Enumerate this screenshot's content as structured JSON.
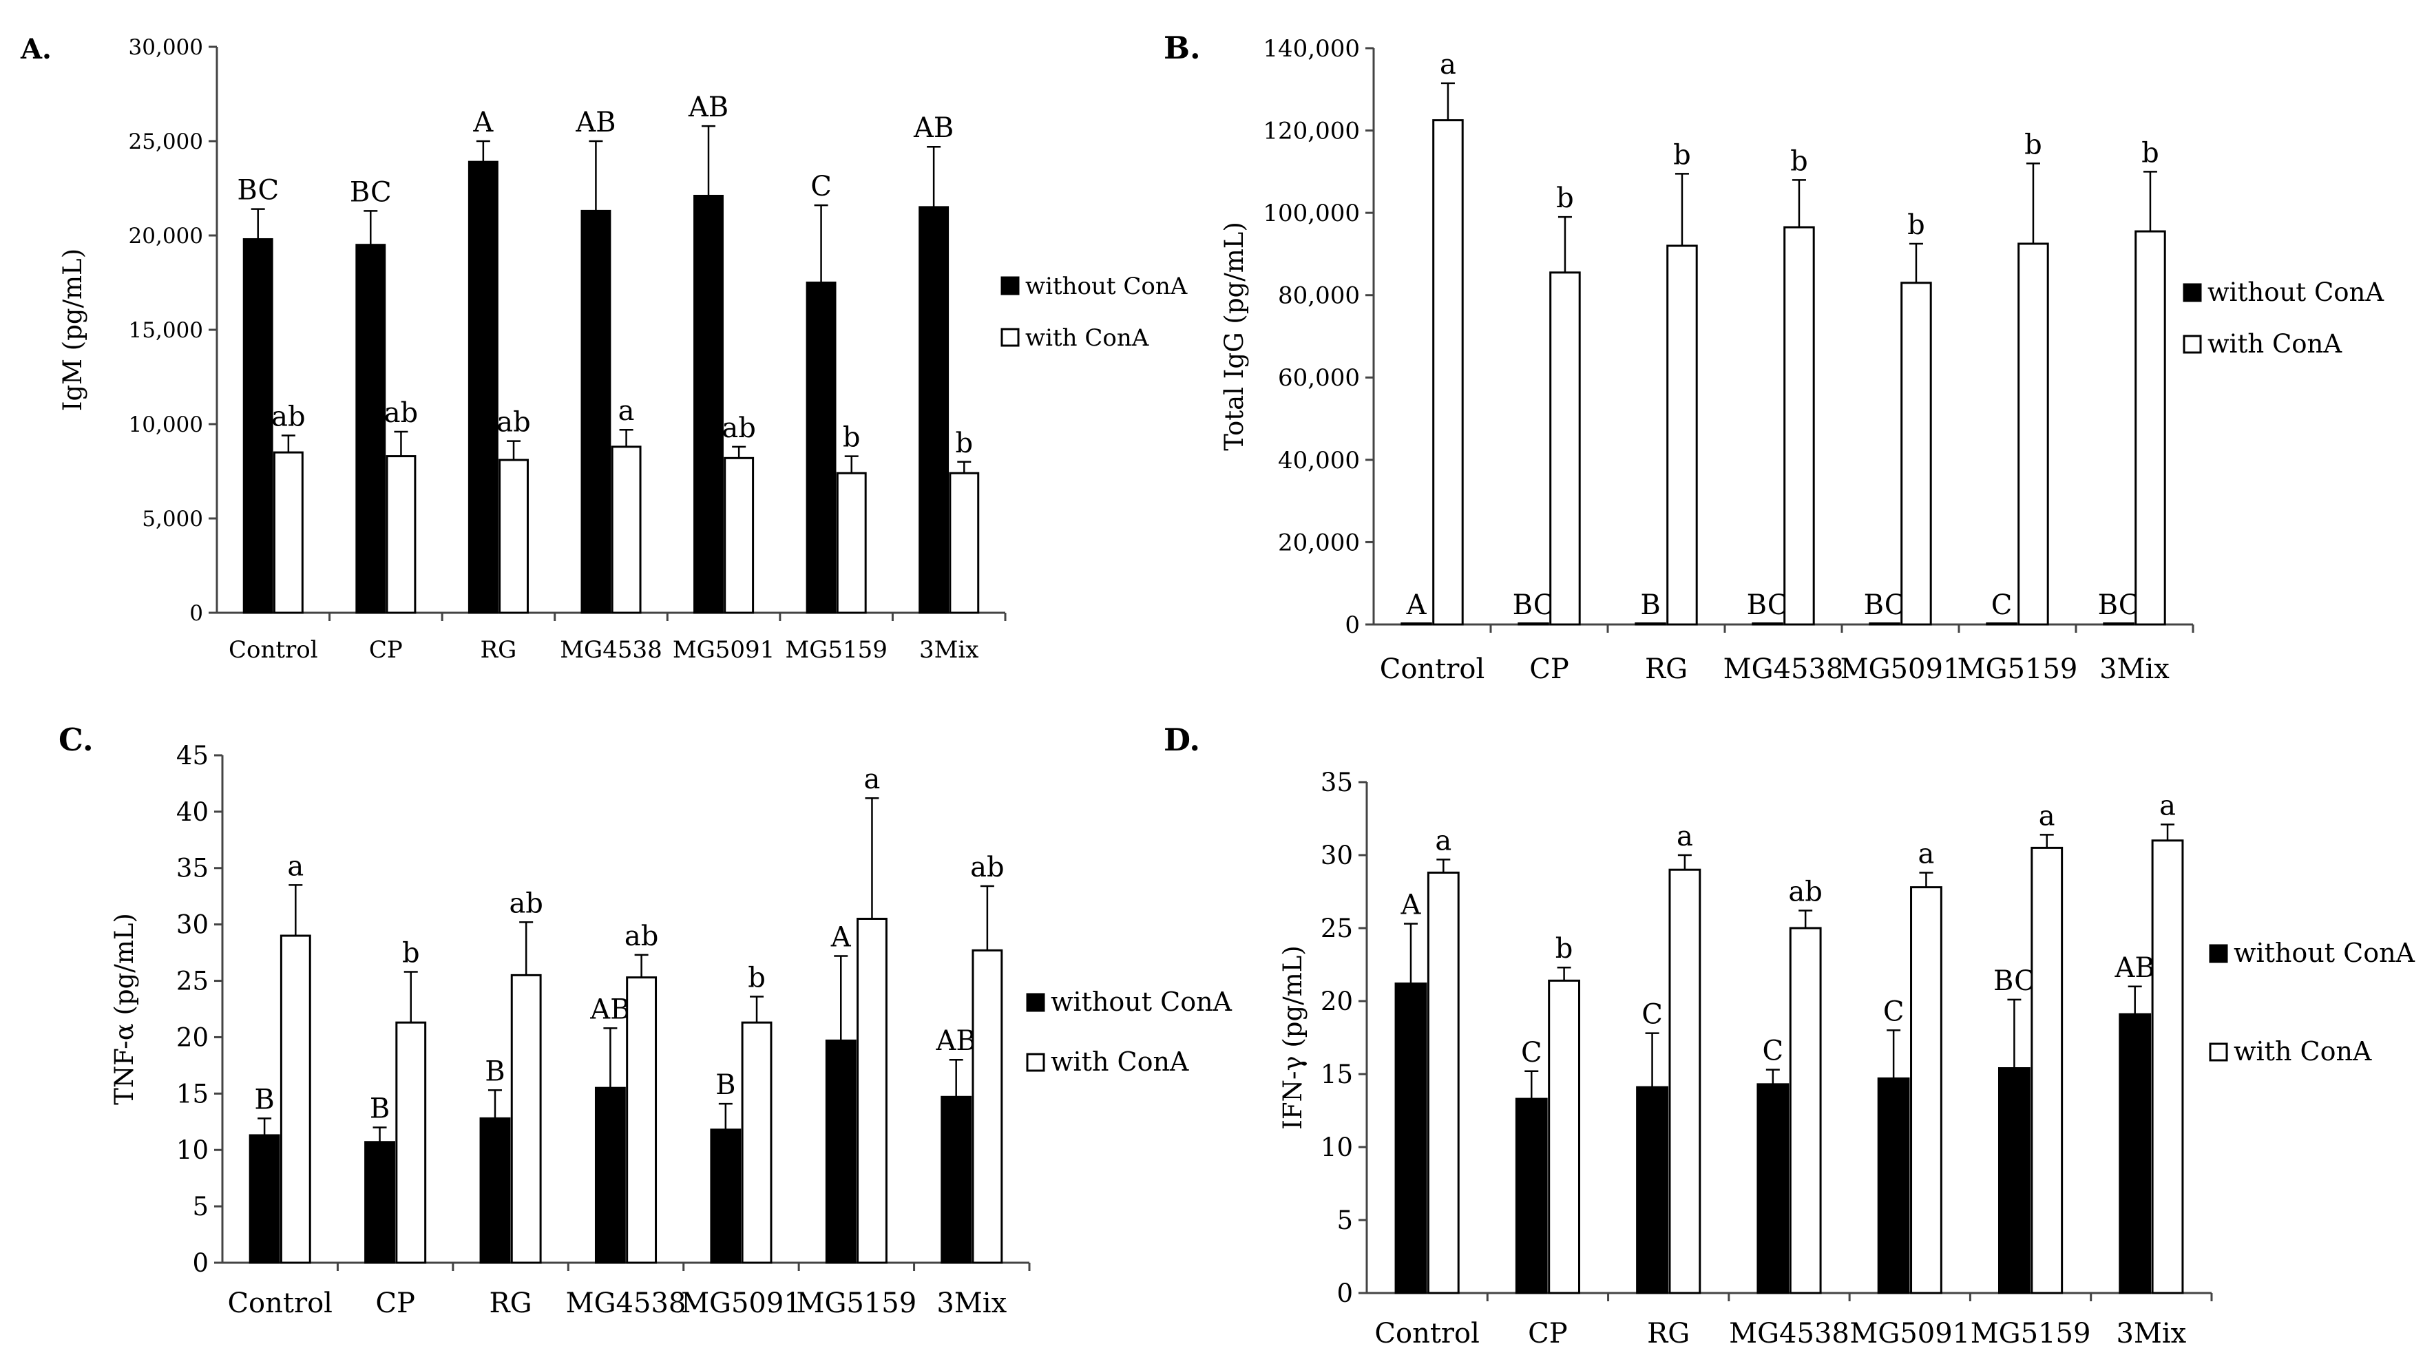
{
  "chart_data": [
    {
      "type": "bar",
      "panel_label": "A.",
      "title": "",
      "xlabel": "",
      "ylabel": "IgM (pg/mL)",
      "ylim": [
        0,
        30000
      ],
      "yticks": [
        0,
        5000,
        10000,
        15000,
        20000,
        25000,
        30000
      ],
      "ytick_labels": [
        "0",
        "5,000",
        "10,000",
        "15,000",
        "20,000",
        "25,000",
        "30,000"
      ],
      "categories": [
        "Control",
        "CP",
        "RG",
        "MG4538",
        "MG5091",
        "MG5159",
        "3Mix"
      ],
      "legend_position": "right",
      "series": [
        {
          "name": "without ConA",
          "fill": "#000000",
          "values": [
            19800,
            19500,
            23900,
            21300,
            22100,
            17500,
            21500
          ],
          "errors": [
            1600,
            1800,
            1100,
            3700,
            3700,
            4100,
            3200
          ],
          "labels": [
            "BC",
            "BC",
            "A",
            "AB",
            "AB",
            "C",
            "AB"
          ]
        },
        {
          "name": "with ConA",
          "fill": "#ffffff",
          "values": [
            8500,
            8300,
            8100,
            8800,
            8200,
            7400,
            7400
          ],
          "errors": [
            900,
            1300,
            1000,
            900,
            600,
            900,
            600
          ],
          "labels": [
            "ab",
            "ab",
            "ab",
            "a",
            "ab",
            "b",
            "b"
          ]
        }
      ]
    },
    {
      "type": "bar",
      "panel_label": "B.",
      "title": "",
      "xlabel": "",
      "ylabel": "Total IgG (pg/mL)",
      "ylim": [
        0,
        140000
      ],
      "yticks": [
        0,
        20000,
        40000,
        60000,
        80000,
        100000,
        120000,
        140000
      ],
      "ytick_labels": [
        "0",
        "20,000",
        "40,000",
        "60,000",
        "80,000",
        "100,000",
        "120,000",
        "140,000"
      ],
      "categories": [
        "Control",
        "CP",
        "RG",
        "MG4538",
        "MG5091",
        "MG5159",
        "3Mix"
      ],
      "legend_position": "right",
      "series": [
        {
          "name": "without ConA",
          "fill": "#000000",
          "values": [
            200,
            200,
            200,
            200,
            200,
            200,
            200
          ],
          "errors": [
            0,
            0,
            0,
            0,
            0,
            0,
            0
          ],
          "labels": [
            "A",
            "BC",
            "B",
            "BC",
            "BC",
            "C",
            "BC"
          ]
        },
        {
          "name": "with ConA",
          "fill": "#ffffff",
          "values": [
            122500,
            85500,
            92000,
            96500,
            83000,
            92500,
            95500
          ],
          "errors": [
            9000,
            13500,
            17500,
            11500,
            9500,
            19500,
            14500
          ],
          "labels": [
            "a",
            "b",
            "b",
            "b",
            "b",
            "b",
            "b"
          ]
        }
      ]
    },
    {
      "type": "bar",
      "panel_label": "C.",
      "title": "",
      "xlabel": "",
      "ylabel": "TNF-α (pg/mL)",
      "ylim": [
        0,
        45
      ],
      "yticks": [
        0,
        5,
        10,
        15,
        20,
        25,
        30,
        35,
        40,
        45
      ],
      "ytick_labels": [
        "0",
        "5",
        "10",
        "15",
        "20",
        "25",
        "30",
        "35",
        "40",
        "45"
      ],
      "categories": [
        "Control",
        "CP",
        "RG",
        "MG4538",
        "MG5091",
        "MG5159",
        "3Mix"
      ],
      "legend_position": "right",
      "series": [
        {
          "name": "without ConA",
          "fill": "#000000",
          "values": [
            11.3,
            10.7,
            12.8,
            15.5,
            11.8,
            19.7,
            14.7
          ],
          "errors": [
            1.5,
            1.3,
            2.5,
            5.3,
            2.3,
            7.5,
            3.3
          ],
          "labels": [
            "B",
            "B",
            "B",
            "AB",
            "B",
            "A",
            "AB"
          ]
        },
        {
          "name": "with ConA",
          "fill": "#ffffff",
          "values": [
            29.0,
            21.3,
            25.5,
            25.3,
            21.3,
            30.5,
            27.7
          ],
          "errors": [
            4.5,
            4.5,
            4.7,
            2.0,
            2.3,
            10.7,
            5.7
          ],
          "labels": [
            "a",
            "b",
            "ab",
            "ab",
            "b",
            "a",
            "ab"
          ]
        }
      ]
    },
    {
      "type": "bar",
      "panel_label": "D.",
      "title": "",
      "xlabel": "",
      "ylabel": "IFN-γ (pg/mL)",
      "ylim": [
        0,
        35
      ],
      "yticks": [
        0,
        5,
        10,
        15,
        20,
        25,
        30,
        35
      ],
      "ytick_labels": [
        "0",
        "5",
        "10",
        "15",
        "20",
        "25",
        "30",
        "35"
      ],
      "categories": [
        "Control",
        "CP",
        "RG",
        "MG4538",
        "MG5091",
        "MG5159",
        "3Mix"
      ],
      "legend_position": "right",
      "series": [
        {
          "name": "without ConA",
          "fill": "#000000",
          "values": [
            21.2,
            13.3,
            14.1,
            14.3,
            14.7,
            15.4,
            19.1
          ],
          "errors": [
            4.1,
            1.9,
            3.7,
            1.0,
            3.3,
            4.7,
            1.9
          ],
          "labels": [
            "A",
            "C",
            "C",
            "C",
            "C",
            "BC",
            "AB"
          ]
        },
        {
          "name": "with ConA",
          "fill": "#ffffff",
          "values": [
            28.8,
            21.4,
            29.0,
            25.0,
            27.8,
            30.5,
            31.0
          ],
          "errors": [
            0.9,
            0.9,
            1.0,
            1.2,
            1.0,
            0.9,
            1.1
          ],
          "labels": [
            "a",
            "b",
            "a",
            "ab",
            "a",
            "a",
            "a"
          ]
        }
      ]
    }
  ]
}
